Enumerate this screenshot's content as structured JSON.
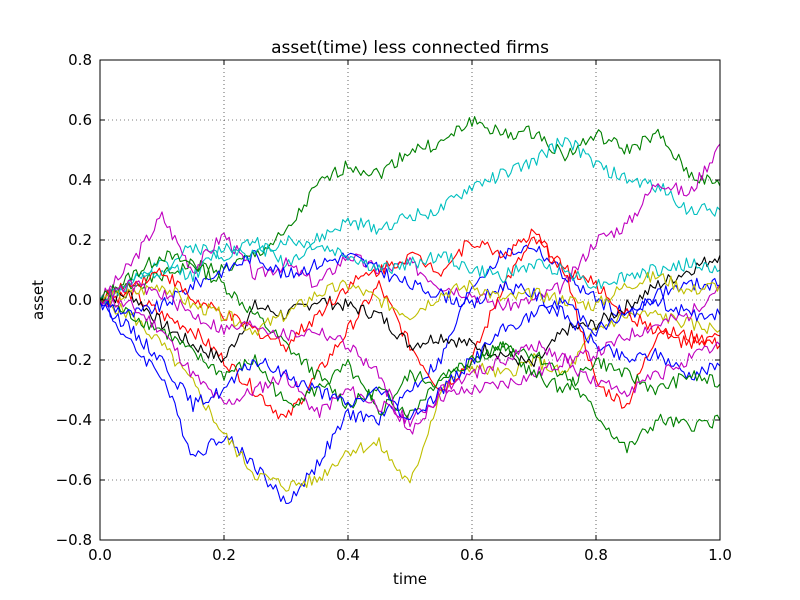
{
  "chart_data": {
    "type": "line",
    "title": "asset(time) less connected firms",
    "xlabel": "time",
    "ylabel": "asset",
    "xlim": [
      0.0,
      1.0
    ],
    "ylim": [
      -0.8,
      0.8
    ],
    "xticks": [
      "0.0",
      "0.2",
      "0.4",
      "0.6",
      "0.8",
      "1.0"
    ],
    "yticks": [
      "−0.8",
      "−0.6",
      "−0.4",
      "−0.2",
      "0.0",
      "0.2",
      "0.4",
      "0.6",
      "0.8"
    ],
    "grid": true,
    "legend": "none",
    "x": [
      0.0,
      0.05,
      0.1,
      0.15,
      0.2,
      0.25,
      0.3,
      0.35,
      0.4,
      0.45,
      0.5,
      0.55,
      0.6,
      0.65,
      0.7,
      0.75,
      0.8,
      0.85,
      0.9,
      0.95,
      1.0
    ],
    "series": [
      {
        "color": "#008000",
        "values": [
          0.0,
          0.05,
          0.08,
          0.12,
          0.1,
          0.15,
          0.22,
          0.38,
          0.45,
          0.42,
          0.5,
          0.52,
          0.6,
          0.55,
          0.56,
          0.48,
          0.55,
          0.5,
          0.55,
          0.42,
          0.38
        ]
      },
      {
        "color": "#00bfbf",
        "values": [
          0.0,
          0.06,
          0.1,
          0.18,
          0.15,
          0.2,
          0.12,
          0.2,
          0.26,
          0.24,
          0.28,
          0.3,
          0.38,
          0.42,
          0.46,
          0.54,
          0.45,
          0.4,
          0.38,
          0.3,
          0.3
        ]
      },
      {
        "color": "#bf00bf",
        "values": [
          0.0,
          0.12,
          0.28,
          0.1,
          0.22,
          0.08,
          0.12,
          0.05,
          0.15,
          0.1,
          0.12,
          0.05,
          0.02,
          -0.02,
          0.0,
          0.05,
          0.2,
          0.25,
          0.4,
          0.35,
          0.52
        ]
      },
      {
        "color": "#0000ff",
        "values": [
          0.0,
          -0.15,
          -0.25,
          -0.52,
          -0.45,
          -0.55,
          -0.68,
          -0.55,
          -0.38,
          -0.4,
          -0.3,
          -0.2,
          0.05,
          0.15,
          0.18,
          0.08,
          0.0,
          -0.05,
          0.02,
          0.05,
          0.05
        ]
      },
      {
        "color": "#bfbf00",
        "values": [
          0.0,
          -0.05,
          -0.15,
          -0.28,
          -0.45,
          -0.58,
          -0.62,
          -0.6,
          -0.5,
          -0.48,
          -0.62,
          -0.3,
          -0.22,
          -0.25,
          -0.2,
          -0.25,
          -0.1,
          -0.05,
          -0.05,
          -0.08,
          -0.1
        ]
      },
      {
        "color": "#ff0000",
        "values": [
          0.0,
          0.02,
          -0.05,
          -0.1,
          -0.2,
          -0.3,
          -0.4,
          -0.25,
          -0.1,
          0.05,
          -0.15,
          -0.3,
          -0.2,
          0.05,
          0.2,
          0.1,
          -0.28,
          -0.35,
          -0.1,
          -0.12,
          -0.15
        ]
      },
      {
        "color": "#000000",
        "values": [
          0.0,
          0.02,
          -0.08,
          -0.15,
          -0.2,
          -0.02,
          -0.05,
          0.0,
          -0.02,
          -0.05,
          -0.15,
          -0.12,
          -0.15,
          -0.18,
          -0.22,
          -0.1,
          -0.08,
          -0.02,
          0.05,
          0.1,
          0.15
        ]
      },
      {
        "color": "#008000",
        "values": [
          0.0,
          -0.05,
          -0.1,
          -0.18,
          -0.25,
          -0.2,
          -0.35,
          -0.3,
          -0.22,
          -0.38,
          -0.25,
          -0.28,
          -0.2,
          -0.15,
          -0.18,
          -0.25,
          -0.38,
          -0.5,
          -0.4,
          -0.42,
          -0.4
        ]
      },
      {
        "color": "#0000ff",
        "values": [
          0.0,
          -0.05,
          -0.02,
          0.05,
          0.1,
          0.15,
          0.08,
          0.12,
          0.15,
          0.1,
          0.05,
          0.02,
          -0.02,
          0.05,
          0.02,
          -0.05,
          -0.15,
          -0.2,
          -0.18,
          -0.25,
          -0.22
        ]
      },
      {
        "color": "#ff0000",
        "values": [
          0.0,
          0.05,
          0.1,
          0.0,
          -0.05,
          -0.1,
          -0.15,
          -0.05,
          0.05,
          0.1,
          0.15,
          0.1,
          0.2,
          0.15,
          0.22,
          0.1,
          0.05,
          -0.05,
          -0.1,
          -0.15,
          -0.12
        ]
      },
      {
        "color": "#bf00bf",
        "values": [
          0.0,
          -0.02,
          -0.1,
          -0.25,
          -0.35,
          -0.3,
          -0.25,
          -0.38,
          -0.3,
          -0.35,
          -0.4,
          -0.32,
          -0.3,
          -0.28,
          -0.25,
          -0.2,
          -0.18,
          -0.12,
          -0.08,
          -0.05,
          0.05
        ]
      },
      {
        "color": "#00bfbf",
        "values": [
          0.0,
          0.05,
          0.12,
          0.08,
          0.18,
          0.15,
          0.2,
          0.18,
          0.15,
          0.1,
          0.12,
          0.15,
          0.1,
          0.08,
          0.12,
          0.1,
          0.05,
          0.08,
          0.1,
          0.12,
          0.1
        ]
      },
      {
        "color": "#008000",
        "values": [
          0.0,
          0.08,
          0.15,
          0.12,
          0.05,
          -0.05,
          -0.15,
          -0.25,
          -0.35,
          -0.3,
          -0.38,
          -0.25,
          -0.2,
          -0.15,
          -0.25,
          -0.3,
          -0.2,
          -0.25,
          -0.3,
          -0.25,
          -0.28
        ]
      },
      {
        "color": "#bfbf00",
        "values": [
          0.0,
          0.02,
          0.05,
          -0.02,
          -0.05,
          -0.1,
          -0.05,
          0.02,
          0.05,
          0.0,
          -0.05,
          0.02,
          0.05,
          0.0,
          0.02,
          0.0,
          -0.02,
          0.05,
          0.08,
          0.03,
          0.05
        ]
      },
      {
        "color": "#0000ff",
        "values": [
          0.0,
          -0.1,
          -0.2,
          -0.35,
          -0.3,
          -0.2,
          -0.25,
          -0.3,
          -0.35,
          -0.3,
          -0.4,
          -0.3,
          -0.2,
          -0.1,
          -0.05,
          0.0,
          -0.1,
          -0.05,
          0.0,
          -0.05,
          -0.05
        ]
      },
      {
        "color": "#bf00bf",
        "values": [
          0.0,
          0.05,
          0.02,
          -0.05,
          -0.1,
          -0.08,
          -0.12,
          -0.1,
          -0.15,
          -0.25,
          -0.45,
          -0.3,
          -0.25,
          -0.2,
          -0.15,
          -0.2,
          -0.28,
          -0.3,
          -0.25,
          -0.2,
          -0.15
        ]
      }
    ]
  }
}
